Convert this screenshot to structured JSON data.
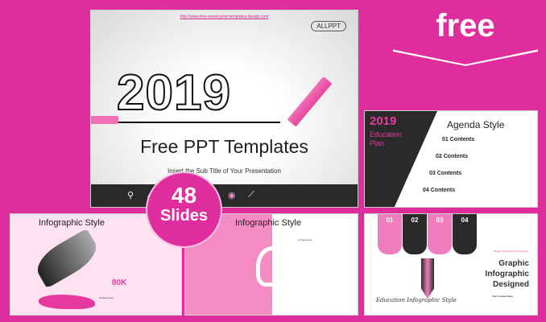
{
  "badge": {
    "label": "free"
  },
  "counter": {
    "number": "48",
    "label": "Slides"
  },
  "main_slide": {
    "url": "http://www.free-powerpoint-templates-design.com",
    "logo": "ALLPPT",
    "year": "2019",
    "title": "Free PPT Templates",
    "subtitle": "Insert the Sub Title of Your Presentation"
  },
  "agenda_slide": {
    "year": "2019",
    "heading": "Education Plan",
    "title": "Agenda Style",
    "items": [
      {
        "num": "01",
        "label": "Contents"
      },
      {
        "num": "02",
        "label": "Contents"
      },
      {
        "num": "03",
        "label": "Contents"
      },
      {
        "num": "04",
        "label": "Contents"
      }
    ]
  },
  "infographic1": {
    "title": "Infographic Style",
    "stat": "80K",
    "content_label": "Content Here"
  },
  "infographic2": {
    "title": "Infographic Style",
    "content_label": "Content Here"
  },
  "infographic3": {
    "columns": [
      "01",
      "02",
      "03",
      "04"
    ],
    "tagline": "Modern PowerPoint Presentation",
    "title": [
      "Graphic",
      "Infographic",
      "Designed"
    ],
    "content_title": "Your Content Here",
    "script": "Education Infographic Style"
  },
  "colors": {
    "brand_pink": "#e02d9e",
    "dark": "#2a2a2a"
  }
}
